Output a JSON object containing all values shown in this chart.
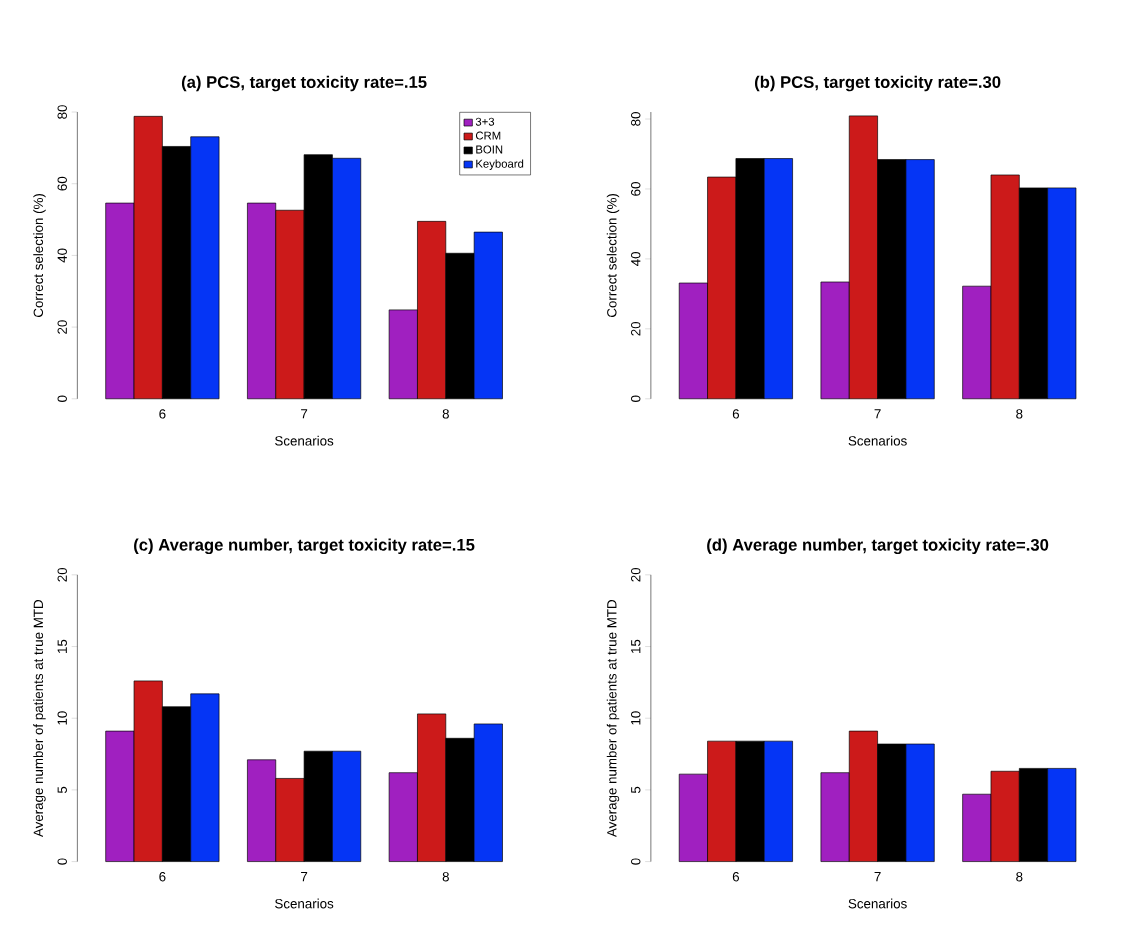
{
  "chart_data": [
    {
      "type": "bar",
      "title": "(a) PCS, target toxicity rate=.15",
      "xlabel": "Scenarios",
      "ylabel": "Correct selection (%)",
      "categories": [
        "6",
        "7",
        "8"
      ],
      "ylim": [
        0,
        80
      ],
      "yticks": [
        0,
        20,
        40,
        60,
        80
      ],
      "legend": "top right",
      "grid": false,
      "series": [
        {
          "name": "3+3",
          "color": "#a020c0",
          "values": [
            54.6,
            54.6,
            24.8
          ]
        },
        {
          "name": "CRM",
          "color": "#cc1a1a",
          "values": [
            78.8,
            52.6,
            49.5
          ]
        },
        {
          "name": "BOIN",
          "color": "#000000",
          "values": [
            70.4,
            68.1,
            40.6
          ]
        },
        {
          "name": "Keyboard",
          "color": "#0535f5",
          "values": [
            73.1,
            67.1,
            46.5
          ]
        }
      ]
    },
    {
      "type": "bar",
      "title": "(b) PCS, target toxicity rate=.30",
      "xlabel": "Scenarios",
      "ylabel": "Correct selection (%)",
      "categories": [
        "6",
        "7",
        "8"
      ],
      "ylim": [
        0,
        82
      ],
      "yticks": [
        0,
        20,
        40,
        60,
        80
      ],
      "grid": false,
      "series": [
        {
          "color": "#a020c0",
          "values": [
            33.1,
            33.4,
            32.2
          ]
        },
        {
          "color": "#cc1a1a",
          "values": [
            63.4,
            80.9,
            64.0
          ]
        },
        {
          "color": "#000000",
          "values": [
            68.7,
            68.4,
            60.3
          ]
        },
        {
          "color": "#0535f5",
          "values": [
            68.7,
            68.4,
            60.3
          ]
        }
      ]
    },
    {
      "type": "bar",
      "title": "(c) Average number, target toxicity rate=.15",
      "xlabel": "Scenarios",
      "ylabel": "Average number of patients at true MTD",
      "categories": [
        "6",
        "7",
        "8"
      ],
      "ylim": [
        0,
        20
      ],
      "yticks": [
        0,
        5,
        10,
        15,
        20
      ],
      "grid": false,
      "series": [
        {
          "color": "#a020c0",
          "values": [
            9.1,
            7.1,
            6.2
          ]
        },
        {
          "color": "#cc1a1a",
          "values": [
            12.6,
            5.8,
            10.3
          ]
        },
        {
          "color": "#000000",
          "values": [
            10.8,
            7.7,
            8.6
          ]
        },
        {
          "color": "#0535f5",
          "values": [
            11.7,
            7.7,
            9.6
          ]
        }
      ]
    },
    {
      "type": "bar",
      "title": "(d) Average number, target toxicity rate=.30",
      "xlabel": "Scenarios",
      "ylabel": "Average number of patients at true MTD",
      "categories": [
        "6",
        "7",
        "8"
      ],
      "ylim": [
        0,
        20
      ],
      "yticks": [
        0,
        5,
        10,
        15,
        20
      ],
      "grid": false,
      "series": [
        {
          "color": "#a020c0",
          "values": [
            6.1,
            6.2,
            4.7
          ]
        },
        {
          "color": "#cc1a1a",
          "values": [
            8.4,
            9.1,
            6.3
          ]
        },
        {
          "color": "#000000",
          "values": [
            8.4,
            8.2,
            6.5
          ]
        },
        {
          "color": "#0535f5",
          "values": [
            8.4,
            8.2,
            6.5
          ]
        }
      ]
    }
  ]
}
